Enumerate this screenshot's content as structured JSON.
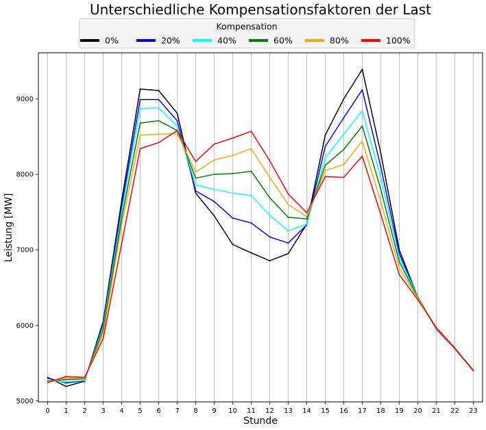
{
  "chart_data": {
    "type": "line",
    "title": "Unterschiedliche Kompensationsfaktoren der Last",
    "xlabel": "Stunde",
    "ylabel": "Leistung [MW]",
    "x": [
      0,
      1,
      2,
      3,
      4,
      5,
      6,
      7,
      8,
      9,
      10,
      11,
      12,
      13,
      14,
      15,
      16,
      17,
      18,
      19,
      20,
      21,
      22,
      23
    ],
    "xlim": [
      -0.5,
      23.5
    ],
    "ylim": [
      4985,
      9610
    ],
    "yticks": [
      5000,
      6000,
      7000,
      8000,
      9000
    ],
    "grid": "vertical",
    "legend": {
      "title": "Kompensation",
      "placement": "top-center",
      "columns": 6
    },
    "series": [
      {
        "name": "0%",
        "color": "#000000",
        "values": [
          5310,
          5190,
          5260,
          6050,
          7650,
          9130,
          9110,
          8810,
          7750,
          7450,
          7070,
          6960,
          6855,
          6950,
          7340,
          8520,
          9000,
          9390,
          8280,
          7000,
          6370,
          5950,
          5690,
          5400
        ]
      },
      {
        "name": "20%",
        "color": "#0000ff",
        "values": [
          5300,
          5235,
          5265,
          6020,
          7580,
          8990,
          8990,
          8710,
          7780,
          7640,
          7420,
          7355,
          7170,
          7090,
          7330,
          8370,
          8750,
          9120,
          8100,
          6950,
          6380,
          5950,
          5690,
          5405
        ]
      },
      {
        "name": "40%",
        "color": "#00ffff",
        "values": [
          5270,
          5250,
          5270,
          5980,
          7500,
          8870,
          8880,
          8640,
          7860,
          7800,
          7750,
          7720,
          7460,
          7250,
          7340,
          8220,
          8530,
          8840,
          7960,
          6900,
          6380,
          5960,
          5695,
          5410
        ]
      },
      {
        "name": "60%",
        "color": "#008000",
        "values": [
          5260,
          5280,
          5290,
          5940,
          7420,
          8680,
          8710,
          8580,
          7950,
          8000,
          8010,
          8040,
          7690,
          7430,
          7410,
          8120,
          8330,
          8640,
          7800,
          6840,
          6370,
          5960,
          5695,
          5405
        ]
      },
      {
        "name": "80%",
        "color": "#ffa500",
        "values": [
          5250,
          5300,
          5300,
          5880,
          7330,
          8520,
          8530,
          8540,
          8030,
          8190,
          8250,
          8340,
          7960,
          7600,
          7440,
          8050,
          8130,
          8440,
          7640,
          6760,
          6360,
          5960,
          5695,
          5400
        ]
      },
      {
        "name": "100%",
        "color": "#ff0000",
        "values": [
          5240,
          5320,
          5310,
          5820,
          7080,
          8340,
          8420,
          8580,
          8170,
          8400,
          8480,
          8570,
          8180,
          7740,
          7490,
          7970,
          7960,
          8240,
          7470,
          6670,
          6340,
          5970,
          5700,
          5395
        ]
      }
    ]
  }
}
